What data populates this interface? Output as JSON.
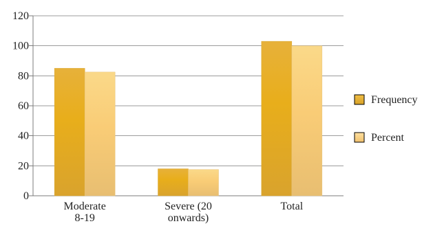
{
  "chart_data": {
    "type": "bar",
    "title": "",
    "xlabel": "",
    "ylabel": "",
    "categories": [
      [
        "Moderate",
        "8-19"
      ],
      [
        "Severe (20",
        "onwards)"
      ],
      [
        "Total"
      ]
    ],
    "series": [
      {
        "name": "Frequency",
        "values": [
          85,
          18,
          103
        ],
        "color": "#E8B02A",
        "color_light": "#F2CF72"
      },
      {
        "name": "Percent",
        "values": [
          82.5,
          17.5,
          100
        ],
        "color": "#F7CE7A",
        "color_light": "#FFE3A8"
      }
    ],
    "ylim": [
      0,
      120
    ],
    "yticks": [
      0,
      20,
      40,
      60,
      80,
      100,
      120
    ],
    "grid": true,
    "legend_position": "right"
  }
}
